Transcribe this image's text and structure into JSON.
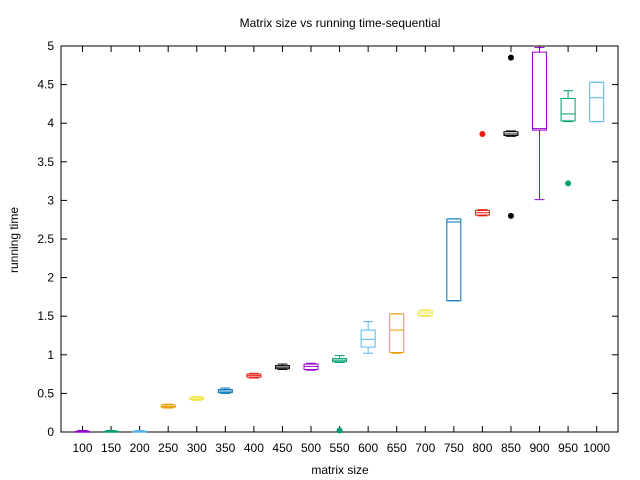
{
  "chart_data": {
    "type": "box",
    "title": "Matrix size vs running time-sequential",
    "xlabel": "matrix size",
    "ylabel": "running time",
    "ylim": [
      0,
      5
    ],
    "yticks": [
      "0",
      "0.5",
      "1",
      "1.5",
      "2",
      "2.5",
      "3",
      "3.5",
      "4",
      "4.5",
      "5"
    ],
    "grid": false,
    "categories": [
      "100",
      "150",
      "200",
      "250",
      "300",
      "350",
      "400",
      "450",
      "500",
      "550",
      "600",
      "650",
      "700",
      "750",
      "800",
      "850",
      "900",
      "950",
      "1000"
    ],
    "boxes": [
      {
        "min": 0.0,
        "q1": 0.0,
        "median": 0.005,
        "q3": 0.01,
        "max": 0.02,
        "outliers": [],
        "color": "#9400d3"
      },
      {
        "min": 0.0,
        "q1": 0.0,
        "median": 0.005,
        "q3": 0.01,
        "max": 0.02,
        "outliers": [],
        "color": "#009e73"
      },
      {
        "min": 0.0,
        "q1": 0.0,
        "median": 0.005,
        "q3": 0.01,
        "max": 0.02,
        "outliers": [],
        "color": "#56b4e9"
      },
      {
        "min": 0.31,
        "q1": 0.32,
        "median": 0.33,
        "q3": 0.35,
        "max": 0.36,
        "outliers": [],
        "color": "#e69f00"
      },
      {
        "min": 0.41,
        "q1": 0.42,
        "median": 0.43,
        "q3": 0.45,
        "max": 0.46,
        "outliers": [],
        "color": "#f0e442"
      },
      {
        "min": 0.5,
        "q1": 0.51,
        "median": 0.53,
        "q3": 0.55,
        "max": 0.57,
        "outliers": [],
        "color": "#0072b2"
      },
      {
        "min": 0.7,
        "q1": 0.71,
        "median": 0.73,
        "q3": 0.75,
        "max": 0.76,
        "outliers": [],
        "color": "#e51e10"
      },
      {
        "min": 0.81,
        "q1": 0.82,
        "median": 0.84,
        "q3": 0.86,
        "max": 0.88,
        "outliers": [],
        "color": "#000000"
      },
      {
        "min": 0.8,
        "q1": 0.81,
        "median": 0.85,
        "q3": 0.88,
        "max": 0.89,
        "outliers": [],
        "color": "#9400d3"
      },
      {
        "min": 0.9,
        "q1": 0.91,
        "median": 0.93,
        "q3": 0.95,
        "max": 0.99,
        "outliers": [
          0.02
        ],
        "color": "#009e73"
      },
      {
        "min": 1.02,
        "q1": 1.1,
        "median": 1.2,
        "q3": 1.32,
        "max": 1.43,
        "outliers": [],
        "color": "#56b4e9"
      },
      {
        "min": 1.02,
        "q1": 1.03,
        "median": 1.32,
        "q3": 1.53,
        "max": 1.53,
        "outliers": [],
        "color": "#e69f00"
      },
      {
        "min": 1.5,
        "q1": 1.51,
        "median": 1.54,
        "q3": 1.57,
        "max": 1.58,
        "outliers": [],
        "color": "#f0e442"
      },
      {
        "min": 1.7,
        "q1": 1.7,
        "median": 2.72,
        "q3": 2.76,
        "max": 2.76,
        "outliers": [],
        "color": "#0072b2"
      },
      {
        "min": 2.8,
        "q1": 2.81,
        "median": 2.84,
        "q3": 2.87,
        "max": 2.88,
        "outliers": [
          3.86
        ],
        "color": "#e51e10"
      },
      {
        "min": 3.83,
        "q1": 3.84,
        "median": 3.86,
        "q3": 3.89,
        "max": 3.9,
        "outliers": [
          4.85,
          2.8
        ],
        "color": "#000000"
      },
      {
        "min": 3.01,
        "q1": 3.91,
        "median": 3.93,
        "q3": 4.92,
        "max": 4.98,
        "outliers": [],
        "color": "#9400d3"
      },
      {
        "min": 4.02,
        "q1": 4.03,
        "median": 4.12,
        "q3": 4.32,
        "max": 4.42,
        "outliers": [
          3.22
        ],
        "color": "#009e73"
      },
      {
        "min": 4.02,
        "q1": 4.02,
        "median": 4.33,
        "q3": 4.53,
        "max": 4.53,
        "outliers": [],
        "color": "#56b4e9"
      }
    ]
  }
}
